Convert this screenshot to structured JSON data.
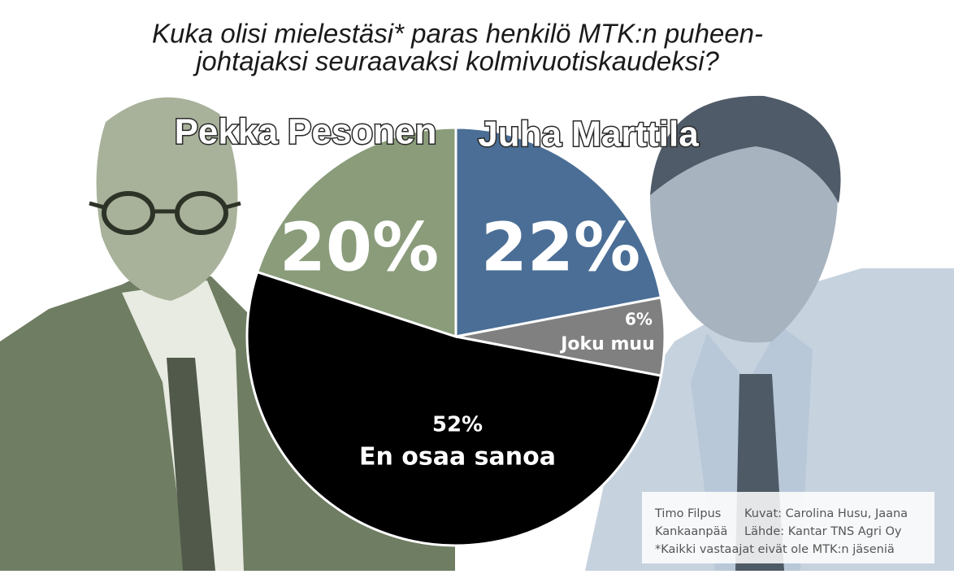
{
  "chart_data": {
    "type": "pie",
    "title": [
      "Kuka olisi mielestäsi* paras henkilö MTK:n puheen-",
      "johtajaksi seuraavaksi kolmivuotiskaudeksi?"
    ],
    "categories": [
      "Juha Marttila",
      "Joku muu",
      "En osaa sanoa",
      "Pekka Pesonen"
    ],
    "values": [
      22,
      6,
      52,
      20
    ],
    "value_labels": [
      "22%",
      "6%",
      "52%",
      "20%"
    ],
    "colors": [
      "#4a6e96",
      "#808080",
      "#000000",
      "#8a9c7a"
    ],
    "credits": [
      "Timo Filpus",
      "Kuvat: Carolina Husu, Jaana",
      "Kankaanpää",
      "Lähde: Kantar TNS Agri Oy",
      "*Kaikki vastaajat eivät ole MTK:n jäseniä"
    ]
  }
}
